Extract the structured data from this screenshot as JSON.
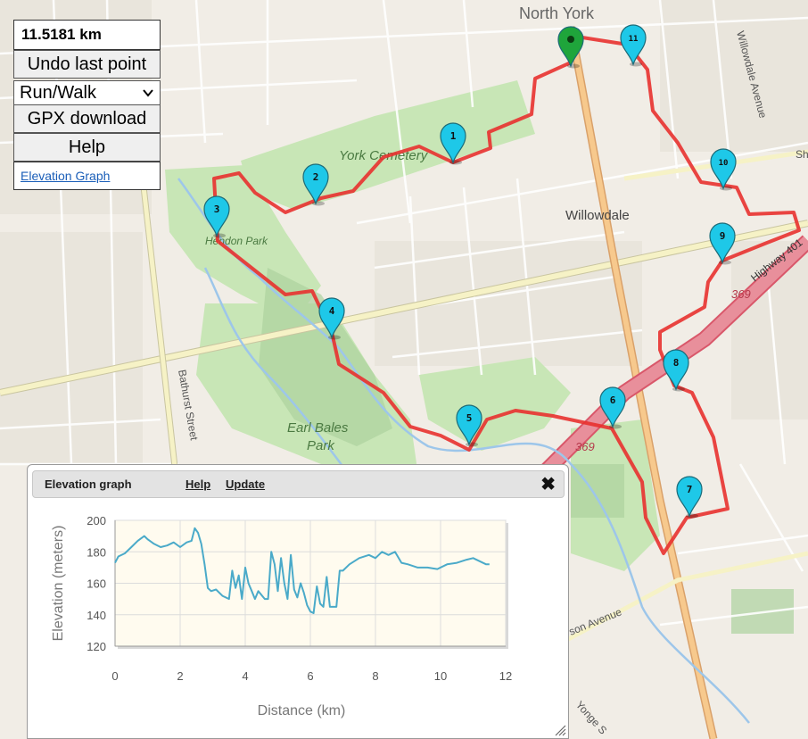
{
  "toolbar": {
    "distance": "11.5181 km",
    "undo_label": "Undo last point",
    "mode_selected": "Run/Walk",
    "gpx_label": "GPX download",
    "help_label": "Help",
    "elevation_link": "Elevation Graph"
  },
  "map": {
    "labels": {
      "north_york": "North York",
      "york_cemetery": "York Cemetery",
      "willowdale": "Willowdale",
      "hendon_park": "Hendon Park",
      "earl_bales": "Earl Bales",
      "earl_bales_park": "Park",
      "bathurst": "Bathurst Street",
      "willowdale_ave": "Willowdale Avenue",
      "highway_401": "Highway 401",
      "shield_369a": "369",
      "shield_369b": "369",
      "sheppard": "Sh",
      "avenue": "son Avenue",
      "yonge": "Yonge S"
    },
    "markers": [
      "1",
      "2",
      "3",
      "4",
      "5",
      "6",
      "7",
      "8",
      "9",
      "10",
      "11"
    ],
    "start_icon": "start-pin-icon",
    "route_color": "#e8312f",
    "marker_color": "#1ec8e8",
    "start_color": "#1fa53b"
  },
  "elevation_panel": {
    "title": "Elevation graph",
    "help_link": "Help",
    "update_link": "Update",
    "close_icon": "close-icon"
  },
  "chart_data": {
    "type": "line",
    "xlabel": "Distance (km)",
    "ylabel": "Elevation (meters)",
    "xlim": [
      0,
      12
    ],
    "ylim": [
      120,
      200
    ],
    "xticks": [
      "0",
      "2",
      "4",
      "6",
      "8",
      "10",
      "12"
    ],
    "yticks": [
      "120",
      "140",
      "160",
      "180",
      "200"
    ],
    "grid": true,
    "series": [
      {
        "color": "#4aaac9",
        "x": [
          0,
          0.1,
          0.3,
          0.5,
          0.7,
          0.9,
          1.0,
          1.2,
          1.4,
          1.6,
          1.8,
          2.0,
          2.2,
          2.35,
          2.45,
          2.55,
          2.65,
          2.75,
          2.85,
          2.95,
          3.1,
          3.3,
          3.5,
          3.6,
          3.7,
          3.8,
          3.9,
          4.0,
          4.1,
          4.2,
          4.3,
          4.4,
          4.6,
          4.7,
          4.8,
          4.9,
          5.0,
          5.1,
          5.2,
          5.3,
          5.4,
          5.5,
          5.6,
          5.7,
          5.8,
          5.9,
          6.0,
          6.1,
          6.2,
          6.3,
          6.4,
          6.5,
          6.6,
          6.7,
          6.8,
          6.9,
          7.0,
          7.2,
          7.5,
          7.8,
          8.0,
          8.2,
          8.4,
          8.6,
          8.8,
          9.0,
          9.3,
          9.6,
          9.9,
          10.2,
          10.5,
          10.8,
          11.0,
          11.2,
          11.4,
          11.5
        ],
        "y": [
          173,
          177,
          179,
          183,
          187,
          190,
          188,
          185,
          183,
          184,
          186,
          183,
          186,
          187,
          195,
          192,
          185,
          172,
          157,
          155,
          156,
          152,
          150,
          168,
          157,
          165,
          150,
          170,
          160,
          155,
          150,
          155,
          150,
          150,
          180,
          172,
          155,
          176,
          160,
          150,
          178,
          156,
          151,
          160,
          154,
          146,
          142,
          141,
          158,
          147,
          145,
          164,
          145,
          145,
          145,
          168,
          168,
          172,
          176,
          178,
          176,
          180,
          178,
          180,
          173,
          172,
          170,
          170,
          169,
          172,
          173,
          175,
          176,
          174,
          172,
          172
        ]
      }
    ]
  }
}
